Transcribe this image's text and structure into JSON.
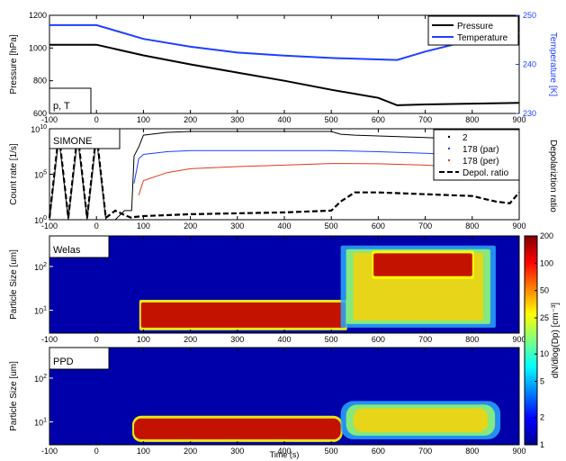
{
  "chart_data": [
    {
      "type": "line",
      "panel_label": "p, T",
      "xlim": [
        -100,
        900
      ],
      "x_ticks": [
        "-100",
        "0",
        "100",
        "200",
        "300",
        "400",
        "500",
        "600",
        "700",
        "800",
        "900"
      ],
      "ylabel": "Pressure [hPa]",
      "ylim": [
        600,
        1200
      ],
      "y_ticks": [
        "600",
        "800",
        "1000",
        "1200"
      ],
      "y2label": "Temperature [K]",
      "y2lim": [
        230,
        250
      ],
      "y2_ticks": [
        "230",
        "240",
        "250"
      ],
      "legend_position": "top-right",
      "series": [
        {
          "name": "Pressure",
          "color": "#000000",
          "axis": "left",
          "x": [
            -100,
            0,
            100,
            200,
            300,
            400,
            500,
            600,
            640,
            700,
            800,
            900
          ],
          "y": [
            1020,
            1020,
            955,
            900,
            850,
            800,
            745,
            695,
            650,
            655,
            660,
            665
          ]
        },
        {
          "name": "Temperature",
          "color": "#1f3fff",
          "axis": "right",
          "x": [
            -100,
            0,
            50,
            100,
            200,
            300,
            400,
            500,
            600,
            640,
            700,
            800,
            900
          ],
          "y": [
            248,
            248,
            246.6,
            245.2,
            243.6,
            242.4,
            241.8,
            241.3,
            241.0,
            240.9,
            242.6,
            245.0,
            246.4
          ]
        }
      ]
    },
    {
      "type": "line",
      "panel_label": "SIMONE",
      "xlim": [
        -100,
        900
      ],
      "x_ticks": [
        "-100",
        "0",
        "100",
        "200",
        "300",
        "400",
        "500",
        "600",
        "700",
        "800",
        "900"
      ],
      "ylabel": "Count rate [1/s]",
      "y_scale": "log",
      "y_ticks": [
        "10^0",
        "10^5",
        "10^10"
      ],
      "y2label": "Depolariztion ratio",
      "legend_position": "top-right",
      "series": [
        {
          "name": "2",
          "color": "#000000",
          "style": "points",
          "x": [
            -100,
            -80,
            -60,
            -40,
            -20,
            0,
            20,
            40,
            60,
            75,
            80,
            90,
            100,
            150,
            200,
            300,
            400,
            500,
            520,
            550,
            600,
            700,
            800,
            900
          ],
          "y": [
            1,
            1000000000,
            1,
            1000000000,
            1,
            1000000000,
            1,
            1,
            10,
            10,
            10000000,
            100000000,
            2000000000,
            4000000000,
            5000000000,
            5000000000,
            5000000000,
            5000000000,
            2500000000,
            2000000000,
            1600000000,
            1100000000,
            700000000,
            400000000
          ]
        },
        {
          "name": "178 (par)",
          "color": "#1f3fff",
          "style": "points",
          "x": [
            80,
            90,
            100,
            150,
            200,
            300,
            400,
            500,
            600,
            700,
            800,
            900
          ],
          "y": [
            10000,
            5000000,
            15000000,
            30000000,
            40000000,
            40000000,
            40000000,
            40000000,
            30000000,
            20000000,
            12000000,
            8000000
          ]
        },
        {
          "name": "178 (per)",
          "color": "#e03a1a",
          "style": "points",
          "x": [
            90,
            100,
            150,
            200,
            300,
            400,
            500,
            600,
            700,
            800,
            850,
            900
          ],
          "y": [
            500,
            20000,
            150000,
            400000,
            700000,
            1000000,
            1500000,
            1400000,
            1000000,
            500000,
            150000,
            30000
          ]
        },
        {
          "name": "Depol. ratio",
          "color": "#000000",
          "style": "dashed",
          "x": [
            -100,
            -80,
            -60,
            -40,
            -20,
            0,
            20,
            40,
            60,
            75,
            80,
            100,
            200,
            300,
            400,
            500,
            520,
            550,
            600,
            700,
            800,
            850,
            880,
            900
          ],
          "y": [
            0.02,
            0.95,
            0.02,
            0.95,
            0.02,
            0.95,
            0.02,
            0.1,
            0.05,
            0.02,
            0.03,
            0.04,
            0.06,
            0.07,
            0.08,
            0.1,
            0.2,
            0.3,
            0.3,
            0.28,
            0.26,
            0.2,
            0.18,
            0.3
          ]
        }
      ]
    },
    {
      "type": "heatmap",
      "panel_label": "Welas",
      "xlim": [
        -100,
        900
      ],
      "x_ticks": [
        "-100",
        "0",
        "100",
        "200",
        "300",
        "400",
        "500",
        "600",
        "700",
        "800",
        "900"
      ],
      "ylabel": "Particle Size [um]",
      "y_scale": "log",
      "y_ticks": [
        "10^1",
        "10^2"
      ],
      "regions": [
        {
          "x_range": [
            95,
            530
          ],
          "size_range": [
            4,
            15
          ],
          "level": "high"
        },
        {
          "x_range": [
            520,
            850
          ],
          "size_range": [
            4,
            300
          ],
          "level": "medium"
        },
        {
          "x_range": [
            590,
            800
          ],
          "size_range": [
            60,
            200
          ],
          "level": "high"
        }
      ]
    },
    {
      "type": "heatmap",
      "panel_label": "PPD",
      "xlim": [
        -100,
        900
      ],
      "x_ticks": [
        "-100",
        "0",
        "100",
        "200",
        "300",
        "400",
        "500",
        "600",
        "700",
        "800",
        "900"
      ],
      "xlabel": "Time (s)",
      "ylabel": "Particle Size [um]",
      "y_scale": "log",
      "y_ticks": [
        "10^1",
        "10^2"
      ],
      "regions": [
        {
          "x_range": [
            80,
            520
          ],
          "size_range": [
            4,
            12
          ],
          "level": "high"
        },
        {
          "x_range": [
            520,
            860
          ],
          "size_range": [
            4,
            30
          ],
          "level": "medium"
        }
      ]
    }
  ],
  "colorbar": {
    "label": "dN/dlog(D_p) [cm^-3]",
    "scale": "log",
    "range": [
      1,
      200
    ],
    "ticks": [
      "1",
      "2",
      "5",
      "10",
      "25",
      "50",
      "100",
      "200"
    ]
  }
}
